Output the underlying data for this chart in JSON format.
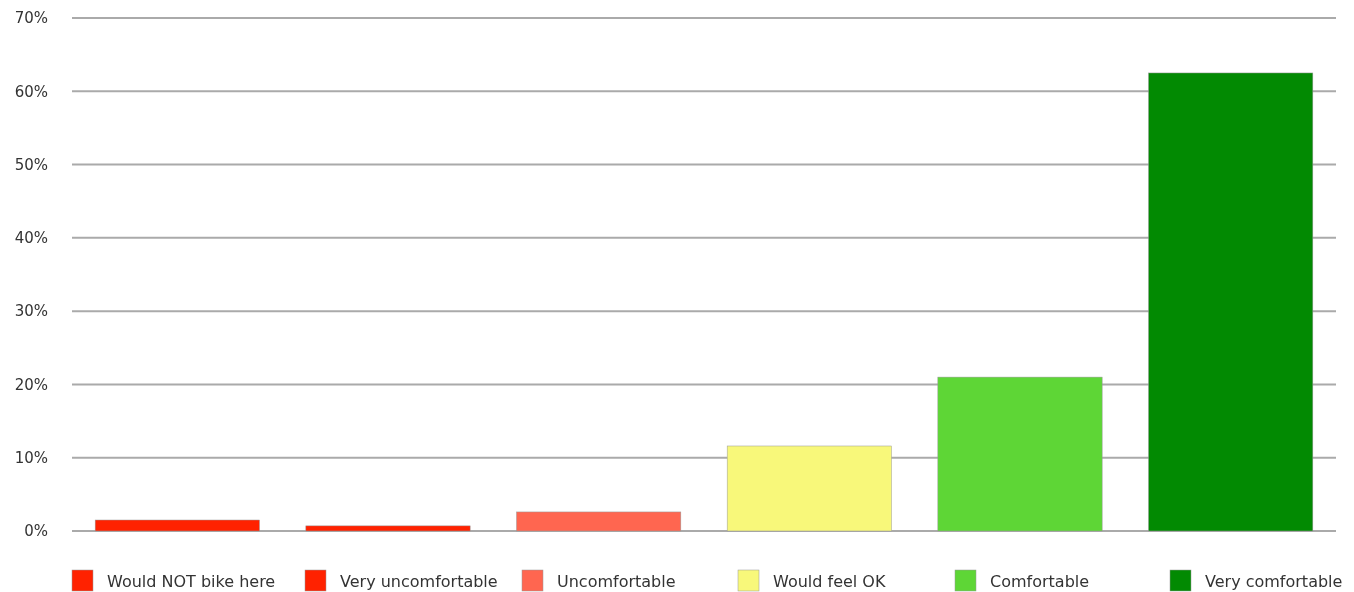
{
  "chart_data": {
    "type": "bar",
    "categories": [
      null,
      null,
      null,
      null,
      null,
      null
    ],
    "series": [
      {
        "name": "Would NOT bike here",
        "color": "#ff2200",
        "values": [
          1.5,
          null,
          null,
          null,
          null,
          null
        ]
      },
      {
        "name": "Very uncomfortable",
        "color": "#ff2200",
        "values": [
          null,
          0.7,
          null,
          null,
          null,
          null
        ]
      },
      {
        "name": "Uncomfortable",
        "color": "#ff6650",
        "values": [
          null,
          null,
          2.6,
          null,
          null,
          null
        ]
      },
      {
        "name": "Would feel OK",
        "color": "#f8f87a",
        "values": [
          null,
          null,
          null,
          11.6,
          null,
          null
        ]
      },
      {
        "name": "Comfortable",
        "color": "#5ed636",
        "values": [
          null,
          null,
          null,
          null,
          21.0,
          null
        ]
      },
      {
        "name": "Very comfortable",
        "color": "#028a02",
        "values": [
          null,
          null,
          null,
          null,
          null,
          62.5
        ]
      }
    ],
    "ylim": [
      0,
      70
    ],
    "yticks": [
      {
        "value": 0,
        "label": "0%"
      },
      {
        "value": 10,
        "label": "10%"
      },
      {
        "value": 20,
        "label": "20%"
      },
      {
        "value": 30,
        "label": "30%"
      },
      {
        "value": 40,
        "label": "40%"
      },
      {
        "value": 50,
        "label": "50%"
      },
      {
        "value": 60,
        "label": "60%"
      },
      {
        "value": 70,
        "label": "70%"
      }
    ],
    "grid": "y",
    "legend": "bottom"
  }
}
